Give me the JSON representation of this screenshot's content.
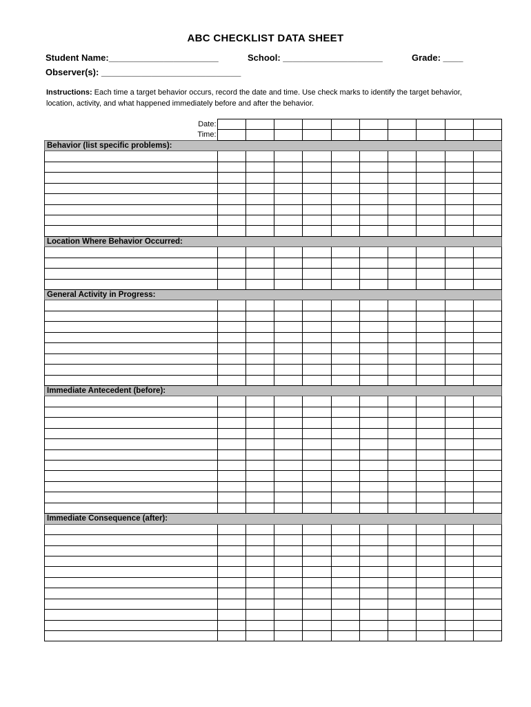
{
  "title": "ABC CHECKLIST DATA SHEET",
  "fields": {
    "student_name": "Student Name:______________________",
    "school": "School: ____________________",
    "grade": "Grade: ____",
    "observers": "Observer(s): ____________________________"
  },
  "instructions": {
    "label": "Instructions:",
    "text": " Each time a target behavior occurs, record the date and time. Use check marks to identify the target behavior, location, activity, and what happened immediately before and after the behavior."
  },
  "table": {
    "columns": 10,
    "date_label": "Date:",
    "time_label": "Time:",
    "sections": [
      {
        "title": "Behavior (list specific problems):",
        "rows": 8
      },
      {
        "title": "Location Where Behavior Occurred:",
        "rows": 4
      },
      {
        "title": "General Activity in Progress:",
        "rows": 8
      },
      {
        "title": "Immediate Antecedent (before):",
        "rows": 11
      },
      {
        "title": "Immediate Consequence (after):",
        "rows": 11
      }
    ]
  },
  "colors": {
    "section_header_bg": "#c0c0c0"
  }
}
